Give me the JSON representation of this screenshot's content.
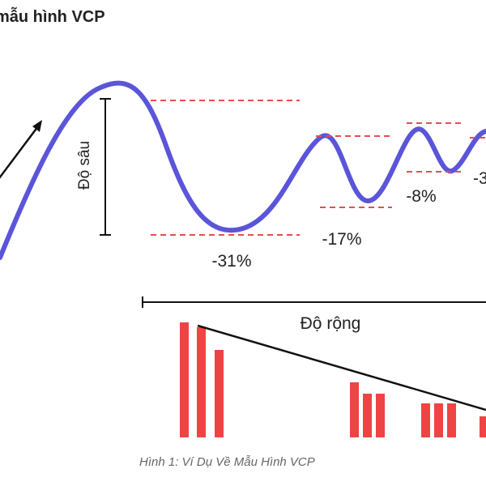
{
  "title": "mẫu hình VCP",
  "caption": "Hình 1: Ví Dụ Về Mẫu Hình VCP",
  "depth_label": "Độ sâu",
  "width_label": "Độ rộng",
  "contractions": [
    {
      "label": "-31%"
    },
    {
      "label": "-17%"
    },
    {
      "label": "-8%"
    },
    {
      "label": "-3"
    }
  ],
  "colors": {
    "price_line": "#5a55d9",
    "guide_lines": "#e05050",
    "volume_bars": "#ee4444",
    "arrows": "#111111"
  },
  "icons": [
    "up-arrow-icon",
    "double-arrow-icon"
  ]
}
